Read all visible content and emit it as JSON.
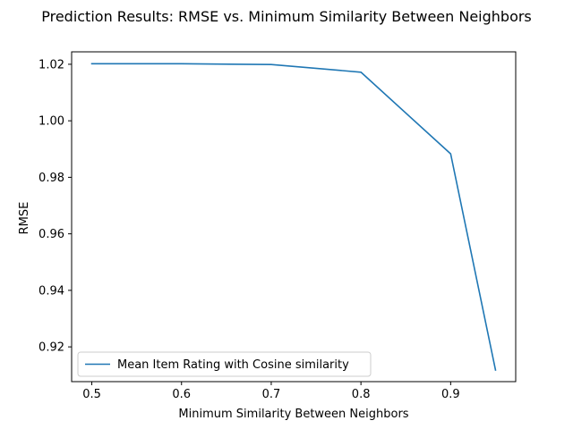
{
  "chart_data": {
    "type": "line",
    "title": "Prediction Results: RMSE vs. Minimum Similarity Between Neighbors",
    "xlabel": "Minimum Similarity Between Neighbors",
    "ylabel": "RMSE",
    "x": [
      0.5,
      0.6,
      0.7,
      0.8,
      0.9,
      0.95
    ],
    "series": [
      {
        "name": "Mean Item Rating with Cosine similarity",
        "values": [
          1.0202,
          1.0202,
          1.0199,
          1.0172,
          0.9883,
          0.9118
        ],
        "color": "#1f77b4"
      }
    ],
    "xlim": [
      0.4775,
      0.9725
    ],
    "ylim": [
      0.9077,
      1.0244
    ],
    "xticks": [
      0.5,
      0.6,
      0.7,
      0.8,
      0.9
    ],
    "xtick_labels": [
      "0.5",
      "0.6",
      "0.7",
      "0.8",
      "0.9"
    ],
    "yticks": [
      0.92,
      0.94,
      0.96,
      0.98,
      1.0,
      1.02
    ],
    "ytick_labels": [
      "0.92",
      "0.94",
      "0.96",
      "0.98",
      "1.00",
      "1.02"
    ],
    "grid": false,
    "legend_position": "lower-left"
  }
}
